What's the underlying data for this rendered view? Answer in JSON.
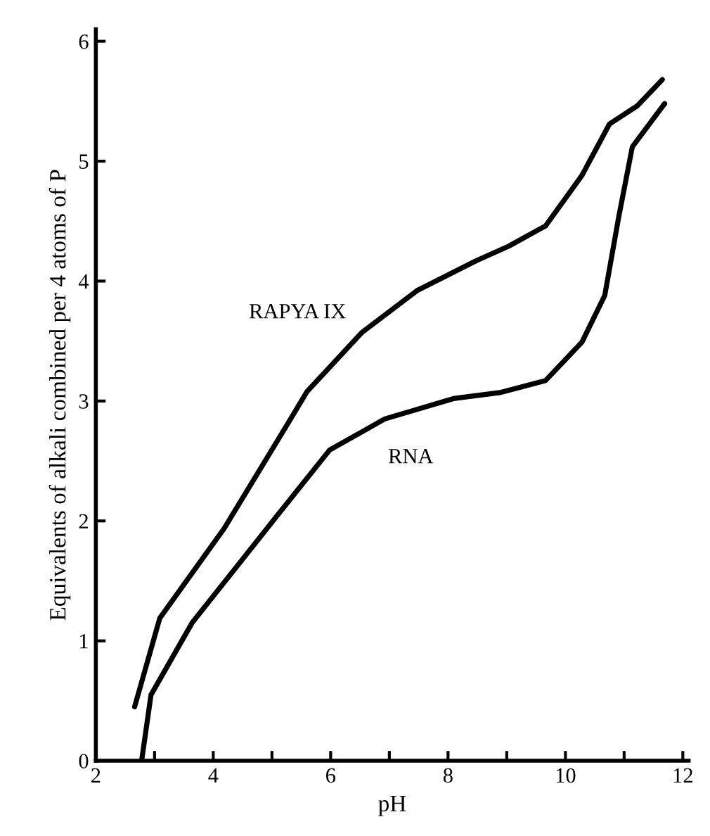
{
  "chart_data": {
    "type": "line",
    "xlabel": "pH",
    "ylabel": "Equivalents of alkali combined per 4 atoms of P",
    "xlim": [
      2,
      12.1
    ],
    "ylim": [
      0,
      6.1
    ],
    "xticks": [
      2,
      {
        "value": 3,
        "label": null
      },
      4,
      {
        "value": 5,
        "label": null
      },
      6,
      {
        "value": 7,
        "label": null
      },
      8,
      {
        "value": 9,
        "label": null
      },
      10,
      {
        "value": 11,
        "label": null
      },
      12
    ],
    "yticks": [
      0,
      1,
      2,
      3,
      4,
      5,
      6
    ],
    "grid": false,
    "legend": false,
    "marker": "none",
    "line_style": "solid",
    "series": [
      {
        "name": "RAPYA IX",
        "color": "#000000",
        "x": [
          2.66,
          3.09,
          4.19,
          5.28,
          5.6,
          6.53,
          7.47,
          8.48,
          9.03,
          9.66,
          10.28,
          10.75,
          11.22,
          11.65
        ],
        "values": [
          0.45,
          1.19,
          1.94,
          2.82,
          3.08,
          3.57,
          3.92,
          4.17,
          4.29,
          4.46,
          4.88,
          5.31,
          5.46,
          5.68
        ]
      },
      {
        "name": "RNA",
        "color": "#000000",
        "x": [
          2.78,
          2.94,
          3.64,
          5.05,
          5.98,
          6.92,
          8.09,
          8.88,
          9.66,
          10.28,
          10.67,
          10.91,
          11.14,
          11.69
        ],
        "values": [
          0,
          0.55,
          1.15,
          2.02,
          2.59,
          2.85,
          3.02,
          3.07,
          3.17,
          3.49,
          3.88,
          4.54,
          5.12,
          5.48
        ]
      }
    ]
  }
}
